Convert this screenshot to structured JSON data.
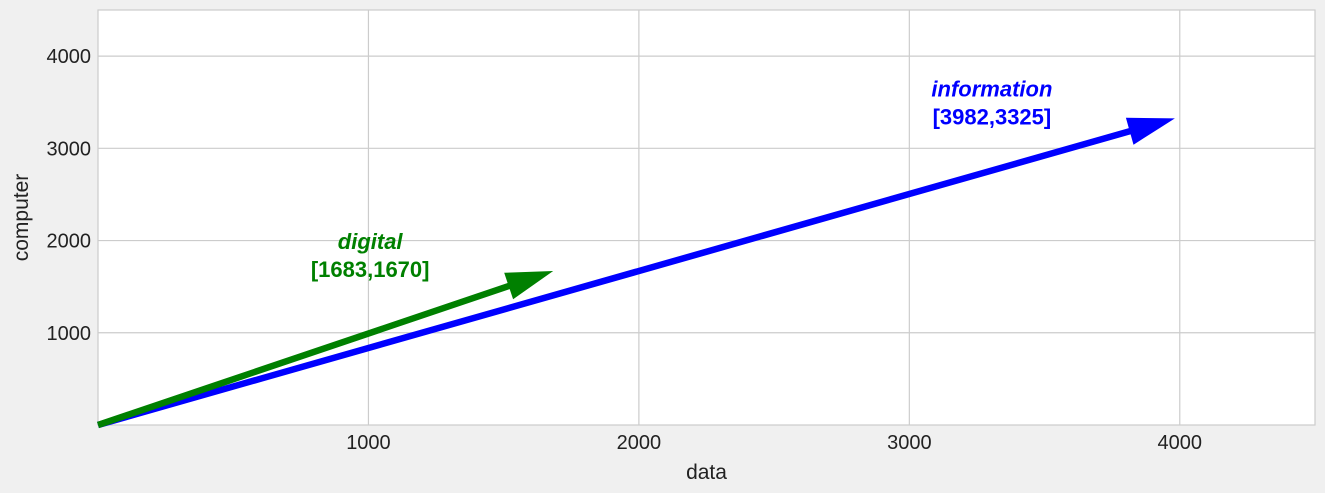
{
  "chart_data": {
    "type": "vector",
    "xlabel": "data",
    "ylabel": "computer",
    "xlim": [
      0,
      4500
    ],
    "ylim": [
      0,
      4500
    ],
    "xticks": [
      1000,
      2000,
      3000,
      4000
    ],
    "yticks": [
      1000,
      2000,
      3000,
      4000
    ],
    "xtick_labels": [
      "1000",
      "2000",
      "3000",
      "4000"
    ],
    "ytick_labels": [
      "1000",
      "2000",
      "3000",
      "4000"
    ],
    "grid": true,
    "background": "#ffffff",
    "frame_color": "#cccccc",
    "series": [
      {
        "name": "digital",
        "x": 1683,
        "y": 1670,
        "label_coords": "[1683,1670]",
        "color": "#008000"
      },
      {
        "name": "information",
        "x": 3982,
        "y": 3325,
        "label_coords": "[3982,3325]",
        "color": "#0000ff"
      }
    ]
  }
}
